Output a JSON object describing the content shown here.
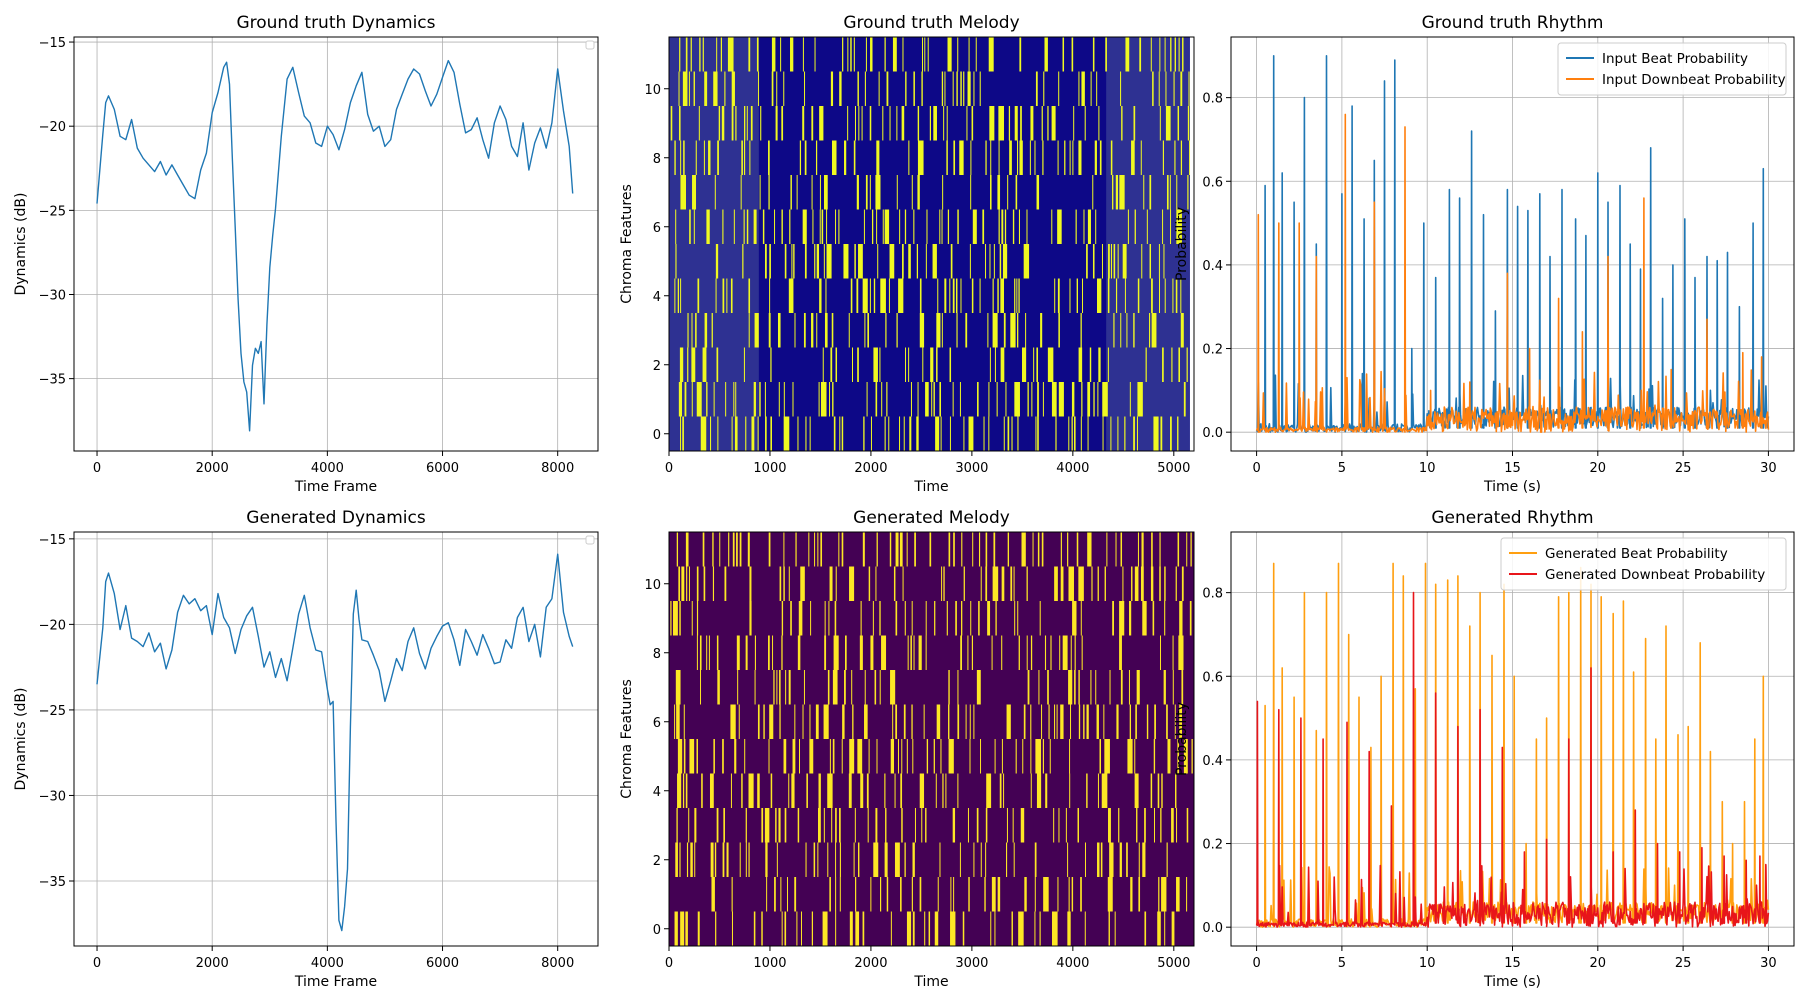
{
  "charts": [
    {
      "id": "gt_dynamics",
      "type": "line",
      "title": "Ground truth Dynamics",
      "xlabel": "Time Frame",
      "ylabel": "Dynamics (dB)",
      "xlim": [
        -400,
        8700
      ],
      "ylim": [
        -39.3,
        -14.7
      ],
      "xticks": [
        0,
        2000,
        4000,
        6000,
        8000
      ],
      "yticks": [
        -35,
        -30,
        -25,
        -20,
        -15
      ],
      "grid": true,
      "legend": "top-right (empty)",
      "series": [
        {
          "color": "#1f77b4",
          "x": [
            0,
            100,
            150,
            200,
            300,
            400,
            500,
            600,
            700,
            800,
            900,
            1000,
            1100,
            1200,
            1300,
            1400,
            1500,
            1600,
            1700,
            1800,
            1900,
            2000,
            2100,
            2200,
            2250,
            2300,
            2350,
            2400,
            2450,
            2500,
            2550,
            2600,
            2650,
            2700,
            2750,
            2800,
            2850,
            2900,
            2950,
            3000,
            3050,
            3100,
            3200,
            3300,
            3400,
            3500,
            3600,
            3700,
            3800,
            3900,
            4000,
            4100,
            4200,
            4300,
            4400,
            4500,
            4600,
            4700,
            4800,
            4900,
            5000,
            5100,
            5200,
            5300,
            5400,
            5500,
            5600,
            5700,
            5800,
            5900,
            6000,
            6100,
            6200,
            6300,
            6400,
            6500,
            6600,
            6700,
            6800,
            6900,
            7000,
            7100,
            7200,
            7300,
            7400,
            7500,
            7600,
            7700,
            7800,
            7900,
            8000,
            8100,
            8200,
            8260
          ],
          "y": [
            -24.6,
            -20.5,
            -18.6,
            -18.2,
            -19.0,
            -20.6,
            -20.8,
            -19.6,
            -21.3,
            -21.9,
            -22.3,
            -22.7,
            -22.1,
            -22.9,
            -22.3,
            -22.9,
            -23.5,
            -24.1,
            -24.3,
            -22.6,
            -21.6,
            -19.2,
            -18.0,
            -16.5,
            -16.2,
            -17.5,
            -22.0,
            -26.0,
            -30.3,
            -33.5,
            -35.2,
            -35.8,
            -38.1,
            -34.2,
            -33.2,
            -33.5,
            -32.8,
            -36.5,
            -31.8,
            -28.4,
            -26.5,
            -24.9,
            -20.6,
            -17.2,
            -16.5,
            -18.0,
            -19.4,
            -19.8,
            -21.0,
            -21.2,
            -20.0,
            -20.5,
            -21.4,
            -20.2,
            -18.6,
            -17.6,
            -16.8,
            -19.3,
            -20.3,
            -20.0,
            -21.2,
            -20.8,
            -19.0,
            -18.1,
            -17.2,
            -16.6,
            -16.9,
            -17.9,
            -18.8,
            -18.1,
            -17.1,
            -16.1,
            -16.8,
            -18.7,
            -20.4,
            -20.2,
            -19.5,
            -20.8,
            -21.9,
            -19.8,
            -18.8,
            -19.6,
            -21.2,
            -21.8,
            -19.8,
            -22.6,
            -21.0,
            -20.1,
            -21.3,
            -19.8,
            -16.6,
            -19.1,
            -21.2,
            -24.0
          ]
        }
      ]
    },
    {
      "id": "gt_melody",
      "type": "heatmap",
      "title": "Ground truth Melody",
      "xlabel": "Time",
      "ylabel": "Chroma Features",
      "xlim": [
        0,
        5200
      ],
      "ylim": [
        -0.5,
        11.5
      ],
      "xticks": [
        0,
        1000,
        2000,
        3000,
        4000,
        5000
      ],
      "yticks": [
        0,
        2,
        4,
        6,
        8,
        10
      ],
      "data_extent": 5160,
      "colors": {
        "background": "#0d0887",
        "fade": "#2e3192",
        "active": "#f0f921"
      },
      "faded_regions": [
        [
          0,
          890
        ],
        [
          4330,
          5160
        ]
      ],
      "rows": 12
    },
    {
      "id": "gt_rhythm",
      "type": "line",
      "title": "Ground truth Rhythm",
      "xlabel": "Time (s)",
      "ylabel": "Probability",
      "xlim": [
        -1.5,
        31.5
      ],
      "ylim": [
        -0.045,
        0.945
      ],
      "xticks": [
        0,
        5,
        10,
        15,
        20,
        25,
        30
      ],
      "yticks": [
        0.0,
        0.2,
        0.4,
        0.6,
        0.8
      ],
      "grid": true,
      "legend": "top-right",
      "series": [
        {
          "name": "Input Beat Probability",
          "color": "#1f77b4",
          "peaks_x": [
            0.5,
            1.0,
            1.5,
            2.2,
            2.8,
            3.5,
            4.1,
            5.0,
            5.6,
            6.3,
            6.9,
            7.5,
            8.1,
            9.1,
            9.8,
            10.5,
            11.3,
            11.9,
            12.6,
            13.3,
            14.0,
            14.7,
            15.3,
            15.9,
            16.6,
            17.2,
            17.9,
            18.7,
            19.3,
            20.0,
            20.6,
            21.3,
            21.9,
            22.5,
            23.1,
            23.8,
            24.4,
            25.1,
            25.7,
            26.4,
            27.0,
            27.6,
            28.3,
            29.1,
            29.7
          ],
          "peaks_y": [
            0.59,
            0.9,
            0.62,
            0.55,
            0.8,
            0.45,
            0.9,
            0.57,
            0.78,
            0.51,
            0.65,
            0.84,
            0.89,
            0.2,
            0.5,
            0.37,
            0.58,
            0.56,
            0.72,
            0.52,
            0.29,
            0.58,
            0.54,
            0.53,
            0.57,
            0.42,
            0.58,
            0.51,
            0.47,
            0.62,
            0.55,
            0.59,
            0.45,
            0.39,
            0.68,
            0.32,
            0.4,
            0.51,
            0.37,
            0.42,
            0.41,
            0.43,
            0.3,
            0.5,
            0.63
          ]
        },
        {
          "name": "Input Downbeat Probability",
          "color": "#ff7f0e",
          "peaks_x": [
            0.1,
            1.3,
            2.5,
            3.5,
            5.2,
            6.9,
            8.7,
            10.2,
            12.5,
            14.7,
            16.0,
            17.7,
            19.1,
            20.6,
            22.7,
            24.3,
            26.4,
            28.5,
            29.6
          ],
          "peaks_y": [
            0.52,
            0.5,
            0.5,
            0.42,
            0.76,
            0.55,
            0.73,
            0.1,
            0.12,
            0.38,
            0.2,
            0.32,
            0.24,
            0.42,
            0.56,
            0.15,
            0.27,
            0.19,
            0.18
          ]
        }
      ]
    },
    {
      "id": "gen_dynamics",
      "type": "line",
      "title": "Generated Dynamics",
      "xlabel": "Time Frame",
      "ylabel": "Dynamics (dB)",
      "xlim": [
        -400,
        8700
      ],
      "ylim": [
        -38.8,
        -14.6
      ],
      "xticks": [
        0,
        2000,
        4000,
        6000,
        8000
      ],
      "yticks": [
        -35,
        -30,
        -25,
        -20,
        -15
      ],
      "grid": true,
      "legend": "top-right (empty)",
      "series": [
        {
          "color": "#1f77b4",
          "x": [
            0,
            100,
            150,
            200,
            300,
            400,
            500,
            600,
            700,
            800,
            900,
            1000,
            1100,
            1200,
            1300,
            1400,
            1500,
            1600,
            1700,
            1800,
            1900,
            2000,
            2100,
            2200,
            2300,
            2400,
            2500,
            2600,
            2700,
            2800,
            2900,
            3000,
            3100,
            3200,
            3300,
            3400,
            3500,
            3600,
            3700,
            3800,
            3900,
            3950,
            4000,
            4050,
            4100,
            4150,
            4200,
            4250,
            4300,
            4350,
            4400,
            4450,
            4500,
            4550,
            4600,
            4700,
            4800,
            4900,
            5000,
            5100,
            5200,
            5300,
            5400,
            5500,
            5600,
            5700,
            5800,
            5900,
            6000,
            6100,
            6200,
            6300,
            6400,
            6500,
            6600,
            6700,
            6800,
            6900,
            7000,
            7100,
            7200,
            7300,
            7400,
            7500,
            7600,
            7700,
            7800,
            7900,
            8000,
            8100,
            8200,
            8260
          ],
          "y": [
            -23.5,
            -20.2,
            -17.5,
            -17.0,
            -18.2,
            -20.3,
            -18.9,
            -20.8,
            -21.0,
            -21.3,
            -20.5,
            -21.6,
            -21.1,
            -22.6,
            -21.5,
            -19.3,
            -18.3,
            -18.8,
            -18.5,
            -19.2,
            -18.9,
            -20.6,
            -18.2,
            -19.6,
            -20.2,
            -21.7,
            -20.3,
            -19.5,
            -19.0,
            -20.7,
            -22.5,
            -21.6,
            -23.1,
            -22.0,
            -23.3,
            -21.4,
            -19.4,
            -18.3,
            -20.2,
            -21.5,
            -21.6,
            -22.7,
            -23.8,
            -24.7,
            -24.5,
            -31.5,
            -37.3,
            -37.9,
            -36.5,
            -34.3,
            -26.0,
            -19.4,
            -18.0,
            -19.7,
            -20.9,
            -21.0,
            -21.8,
            -22.7,
            -24.5,
            -23.3,
            -22.0,
            -22.7,
            -21.0,
            -20.2,
            -21.7,
            -22.6,
            -21.4,
            -20.7,
            -20.1,
            -19.9,
            -20.9,
            -22.4,
            -20.3,
            -21.0,
            -21.8,
            -20.6,
            -21.4,
            -22.3,
            -22.2,
            -20.9,
            -21.4,
            -19.6,
            -19.0,
            -21.0,
            -20.0,
            -21.9,
            -19.0,
            -18.5,
            -15.9,
            -19.3,
            -20.7,
            -21.3
          ]
        }
      ]
    },
    {
      "id": "gen_melody",
      "type": "heatmap",
      "title": "Generated Melody",
      "xlabel": "Time",
      "ylabel": "Chroma Features",
      "xlim": [
        0,
        5200
      ],
      "ylim": [
        -0.5,
        11.5
      ],
      "xticks": [
        0,
        1000,
        2000,
        3000,
        4000,
        5000
      ],
      "yticks": [
        0,
        2,
        4,
        6,
        8,
        10
      ],
      "data_extent": 5200,
      "colors": {
        "background": "#440154",
        "active": "#fde725"
      },
      "rows": 12
    },
    {
      "id": "gen_rhythm",
      "type": "line",
      "title": "Generated Rhythm",
      "xlabel": "Time (s)",
      "ylabel": "Probability",
      "xlim": [
        -1.5,
        31.5
      ],
      "ylim": [
        -0.045,
        0.945
      ],
      "xticks": [
        0,
        5,
        10,
        15,
        20,
        25,
        30
      ],
      "yticks": [
        0.0,
        0.2,
        0.4,
        0.6,
        0.8
      ],
      "grid": true,
      "legend": "top-right",
      "series": [
        {
          "name": "Generated Beat Probability",
          "color": "#ff9f10",
          "peaks_x": [
            0.5,
            1.0,
            1.5,
            2.2,
            2.8,
            3.5,
            4.1,
            4.8,
            5.4,
            6.0,
            6.7,
            7.3,
            8.0,
            8.6,
            9.3,
            9.9,
            10.5,
            11.2,
            11.8,
            12.5,
            13.1,
            13.8,
            14.5,
            15.1,
            15.8,
            16.4,
            17.0,
            17.7,
            18.3,
            19.0,
            19.6,
            20.2,
            20.9,
            21.5,
            22.1,
            22.8,
            23.4,
            24.0,
            24.7,
            25.3,
            26.0,
            26.6,
            27.3,
            27.9,
            28.6,
            29.2,
            29.7
          ],
          "peaks_y": [
            0.53,
            0.87,
            0.62,
            0.55,
            0.8,
            0.47,
            0.8,
            0.87,
            0.7,
            0.55,
            0.43,
            0.6,
            0.87,
            0.84,
            0.57,
            0.87,
            0.82,
            0.83,
            0.84,
            0.72,
            0.8,
            0.65,
            0.82,
            0.6,
            0.2,
            0.45,
            0.5,
            0.79,
            0.8,
            0.86,
            0.82,
            0.79,
            0.75,
            0.78,
            0.61,
            0.69,
            0.45,
            0.72,
            0.46,
            0.48,
            0.68,
            0.42,
            0.3,
            0.2,
            0.3,
            0.45,
            0.6
          ]
        },
        {
          "name": "Generated Downbeat Probability",
          "color": "#e8151a",
          "peaks_x": [
            0.05,
            1.3,
            2.6,
            3.9,
            5.3,
            6.6,
            7.9,
            9.2,
            10.5,
            11.8,
            13.1,
            14.4,
            15.7,
            17.0,
            18.3,
            19.6,
            20.9,
            22.2,
            23.5,
            24.8,
            26.1,
            27.4,
            28.7,
            29.5,
            29.85
          ],
          "peaks_y": [
            0.54,
            0.52,
            0.5,
            0.45,
            0.49,
            0.42,
            0.29,
            0.8,
            0.56,
            0.48,
            0.52,
            0.43,
            0.18,
            0.21,
            0.45,
            0.62,
            0.18,
            0.28,
            0.2,
            0.18,
            0.19,
            0.17,
            0.16,
            0.17,
            0.15
          ]
        }
      ]
    }
  ]
}
